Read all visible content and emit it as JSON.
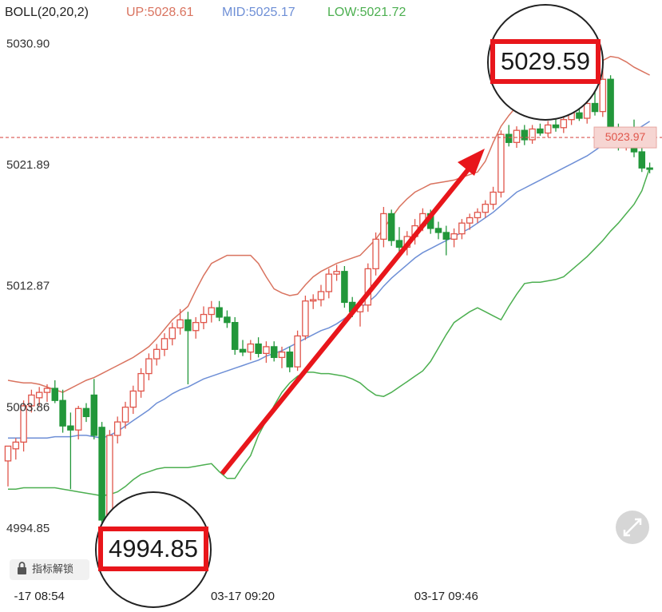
{
  "chart_data": {
    "type": "candlestick",
    "indicator": "BOLL(20,20,2)",
    "categories": [
      null,
      null,
      null,
      null,
      "-17 08:54",
      null,
      null,
      null,
      null,
      null,
      null,
      null,
      null,
      null,
      null,
      null,
      null,
      null,
      null,
      null,
      null,
      null,
      null,
      null,
      null,
      null,
      null,
      null,
      null,
      null,
      "03-17 09:20",
      null,
      null,
      null,
      null,
      null,
      null,
      null,
      null,
      null,
      null,
      null,
      null,
      null,
      null,
      null,
      null,
      null,
      null,
      null,
      null,
      null,
      null,
      null,
      null,
      null,
      "03-17 09:46",
      null,
      null,
      null,
      null,
      null,
      null,
      null,
      null,
      null,
      null,
      null,
      null,
      null,
      null,
      null,
      null,
      null,
      null,
      null,
      null,
      null,
      null,
      null,
      null,
      null,
      null
    ],
    "open": [
      4999.9,
      5000.8,
      5001.3,
      5004.0,
      5004.6,
      5005.0,
      5005.3,
      5004.4,
      5002.5,
      5002.2,
      5003.8,
      5004.8,
      5002.4,
      4995.5,
      5001.8,
      5002.8,
      5003.9,
      5005.1,
      5006.4,
      5007.5,
      5008.2,
      5009.0,
      5009.8,
      5010.4,
      5009.6,
      5010.2,
      5010.8,
      5011.3,
      5010.6,
      5010.2,
      5008.2,
      5008.0,
      5008.6,
      5007.9,
      5008.4,
      5007.6,
      5008.0,
      5006.9,
      5009.2,
      5011.8,
      5011.9,
      5012.5,
      5013.8,
      5014.0,
      5011.7,
      5011.0,
      5011.5,
      5014.2,
      5016.4,
      5018.3,
      5016.3,
      5015.8,
      5016.6,
      5017.4,
      5018.3,
      5017.2,
      5016.9,
      5016.4,
      5016.8,
      5017.6,
      5018.0,
      5018.4,
      5019.0,
      5019.9,
      5024.2,
      5023.6,
      5024.5,
      5023.8,
      5024.6,
      5024.3,
      5024.9,
      5024.7,
      5025.3,
      5025.8,
      5025.4,
      5026.5,
      5025.9,
      5028.3,
      5024.5,
      5023.4,
      5024.1,
      5022.9,
      5021.7
    ],
    "high": [
      5001.0,
      5001.6,
      5004.4,
      5005.2,
      5005.4,
      5005.6,
      5005.9,
      5005.2,
      5003.5,
      5004.0,
      5004.2,
      5006.0,
      5002.8,
      5002.2,
      5003.2,
      5004.3,
      5005.5,
      5006.8,
      5007.9,
      5008.6,
      5009.4,
      5010.2,
      5011.2,
      5011.0,
      5010.6,
      5011.4,
      5011.8,
      5011.8,
      5011.1,
      5010.6,
      5008.9,
      5008.9,
      5009.1,
      5008.8,
      5008.8,
      5008.4,
      5008.4,
      5009.6,
      5012.2,
      5012.3,
      5013.0,
      5014.2,
      5014.5,
      5014.4,
      5012.1,
      5011.9,
      5014.6,
      5016.9,
      5018.8,
      5018.6,
      5017.3,
      5017.0,
      5017.9,
      5018.7,
      5018.6,
      5017.7,
      5017.4,
      5017.2,
      5017.9,
      5018.3,
      5018.7,
      5019.3,
      5020.3,
      5024.5,
      5024.9,
      5024.8,
      5024.9,
      5024.9,
      5025.0,
      5025.2,
      5025.5,
      5025.6,
      5026.1,
      5026.6,
      5026.9,
      5027.6,
      5029.59,
      5028.6,
      5025.0,
      5024.6,
      5025.3,
      5023.4,
      5022.1
    ],
    "low": [
      4998.0,
      5000.0,
      5000.6,
      5003.5,
      5004.0,
      5004.3,
      5004.2,
      5002.0,
      4997.8,
      5001.5,
      5002.8,
      5001.5,
      4994.85,
      4994.9,
      5001.2,
      5002.3,
      5003.4,
      5004.6,
      5005.9,
      5007.0,
      5007.7,
      5008.5,
      5009.3,
      5005.6,
      5009.0,
      5009.7,
      5010.2,
      5010.3,
      5009.8,
      5007.8,
      5007.7,
      5007.4,
      5007.6,
      5007.2,
      5007.3,
      5006.8,
      5006.5,
      5006.6,
      5008.9,
      5011.2,
      5011.4,
      5012.0,
      5013.3,
      5011.3,
      5010.6,
      5009.9,
      5011.0,
      5013.7,
      5015.8,
      5015.9,
      5015.3,
      5015.2,
      5016.0,
      5017.0,
      5016.8,
      5016.4,
      5015.2,
      5015.8,
      5016.4,
      5017.1,
      5017.6,
      5018.0,
      5018.6,
      5019.5,
      5023.3,
      5023.2,
      5023.4,
      5023.5,
      5024.1,
      5024.0,
      5024.4,
      5024.3,
      5024.9,
      5025.2,
      5025.0,
      5025.6,
      5025.5,
      5024.2,
      5023.0,
      5023.0,
      5022.5,
      5021.4,
      5021.3
    ],
    "close": [
      5001.0,
      5001.3,
      5004.0,
      5004.8,
      5005.0,
      5005.3,
      5004.4,
      5002.5,
      5002.2,
      5003.8,
      5003.2,
      5001.8,
      4995.5,
      5001.8,
      5002.8,
      5003.9,
      5005.1,
      5006.4,
      5007.5,
      5008.2,
      5009.0,
      5009.8,
      5010.4,
      5009.6,
      5010.2,
      5010.8,
      5011.3,
      5010.6,
      5010.2,
      5008.2,
      5008.0,
      5008.6,
      5007.9,
      5008.4,
      5007.6,
      5008.0,
      5006.9,
      5009.2,
      5011.8,
      5011.9,
      5012.5,
      5013.8,
      5014.0,
      5011.7,
      5011.0,
      5011.5,
      5014.2,
      5016.4,
      5018.3,
      5016.3,
      5015.8,
      5016.6,
      5017.4,
      5018.3,
      5017.2,
      5016.9,
      5016.4,
      5016.8,
      5017.6,
      5018.0,
      5018.4,
      5019.0,
      5019.9,
      5024.2,
      5023.6,
      5024.5,
      5023.8,
      5024.6,
      5024.3,
      5024.9,
      5024.7,
      5025.3,
      5025.8,
      5025.4,
      5026.5,
      5025.9,
      5028.3,
      5024.5,
      5023.4,
      5024.1,
      5022.9,
      5021.7,
      5021.6
    ],
    "up_color": "#e0564b",
    "down_color": "#22973a",
    "series": [
      {
        "name": "UP:5028.61",
        "color": "#d9735f",
        "values": [
          5005.9,
          5005.8,
          5005.7,
          5005.7,
          5005.6,
          5005.4,
          5005.2,
          5005.0,
          5005.3,
          5005.6,
          5005.9,
          5006.1,
          5006.4,
          5006.7,
          5007.0,
          5007.3,
          5007.6,
          5008.0,
          5008.4,
          5009.0,
          5009.7,
          5010.4,
          5010.9,
          5011.4,
          5012.6,
          5013.7,
          5014.6,
          5014.9,
          5015.2,
          5015.2,
          5015.2,
          5015.2,
          5014.6,
          5013.6,
          5012.7,
          5012.4,
          5012.2,
          5012.3,
          5013.0,
          5013.6,
          5014.0,
          5014.3,
          5014.6,
          5014.8,
          5015.0,
          5015.2,
          5015.8,
          5016.4,
          5017.2,
          5018.0,
          5018.8,
          5019.4,
          5019.9,
          5020.2,
          5020.5,
          5020.6,
          5020.7,
          5020.8,
          5021.0,
          5021.2,
          5021.4,
          5022.2,
          5023.6,
          5024.8,
          5025.6,
          5026.3,
          5026.7,
          5027.0,
          5027.3,
          5027.6,
          5027.9,
          5028.2,
          5028.5,
          5028.7,
          5029.0,
          5029.3,
          5029.7,
          5030.0,
          5029.9,
          5029.6,
          5029.2,
          5028.9,
          5028.61
        ]
      },
      {
        "name": "MID:5025.17",
        "color": "#6e8fd6",
        "values": [
          5001.6,
          5001.6,
          5001.6,
          5001.6,
          5001.6,
          5001.6,
          5001.7,
          5001.7,
          5001.7,
          5001.8,
          5001.8,
          5001.7,
          5001.6,
          5001.8,
          5002.1,
          5002.5,
          5002.9,
          5003.3,
          5003.7,
          5004.2,
          5004.5,
          5004.9,
          5005.2,
          5005.4,
          5005.7,
          5006.0,
          5006.2,
          5006.4,
          5006.6,
          5006.8,
          5007.0,
          5007.2,
          5007.4,
          5007.7,
          5007.9,
          5008.1,
          5008.4,
          5008.7,
          5009.0,
          5009.3,
          5009.6,
          5009.8,
          5010.1,
          5010.5,
          5010.9,
          5011.3,
          5011.7,
          5012.2,
          5012.9,
          5013.5,
          5014.0,
          5014.5,
          5015.0,
          5015.4,
          5015.7,
          5016.0,
          5016.3,
          5016.6,
          5016.9,
          5017.2,
          5017.6,
          5018.0,
          5018.4,
          5018.9,
          5019.4,
          5019.9,
          5020.2,
          5020.5,
          5020.8,
          5021.1,
          5021.4,
          5021.7,
          5022.0,
          5022.3,
          5022.6,
          5023.0,
          5023.4,
          5023.8,
          5024.0,
          5024.2,
          5024.4,
          5024.8,
          5025.17
        ]
      },
      {
        "name": "LOW:5021.72",
        "color": "#4caf50",
        "values": [
          4997.8,
          4997.8,
          4997.9,
          4997.9,
          4997.9,
          4997.9,
          4997.9,
          4997.8,
          4997.7,
          4997.6,
          4997.5,
          4997.4,
          4997.3,
          4997.4,
          4997.6,
          4998.0,
          4998.5,
          4998.9,
          4999.1,
          4999.3,
          4999.4,
          4999.4,
          4999.4,
          4999.4,
          4999.5,
          4999.6,
          4999.7,
          4999.1,
          4998.6,
          4998.6,
          4999.5,
          5000.3,
          5001.8,
          5002.9,
          5004.0,
          5005.0,
          5005.7,
          5006.2,
          5006.5,
          5006.5,
          5006.4,
          5006.4,
          5006.3,
          5006.2,
          5006.0,
          5005.7,
          5005.2,
          5004.8,
          5004.7,
          5005.0,
          5005.4,
          5005.8,
          5006.2,
          5006.6,
          5007.3,
          5008.3,
          5009.3,
          5010.2,
          5010.6,
          5011.0,
          5011.3,
          5011.0,
          5010.7,
          5010.4,
          5011.4,
          5012.3,
          5013.1,
          5013.2,
          5013.2,
          5013.3,
          5013.4,
          5013.6,
          5014.1,
          5014.6,
          5015.1,
          5015.7,
          5016.3,
          5017.0,
          5017.6,
          5018.3,
          5019.0,
          5020.0,
          5021.72
        ]
      }
    ],
    "ylim": [
      4990.5,
      5034.2
    ],
    "yticks": [
      {
        "value": 5030.9,
        "label": "5030.90"
      },
      5021.89,
      5012.87,
      5003.86,
      4994.85
    ],
    "last_price": 5023.97,
    "annotations": [
      5029.59,
      4994.85
    ],
    "button": "指标解锁"
  }
}
